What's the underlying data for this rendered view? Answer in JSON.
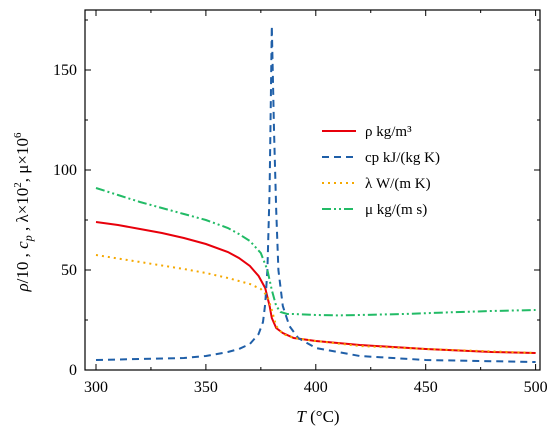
{
  "chart_data": {
    "type": "line",
    "xlabel": "T (°C)",
    "ylabel": "ρ/10 , cp , λ×10², μ×10⁶",
    "xlim": [
      295,
      502
    ],
    "ylim": [
      0,
      180
    ],
    "xticks": [
      300,
      350,
      400,
      450,
      500
    ],
    "yticks": [
      0,
      50,
      100,
      150
    ],
    "grid": false,
    "legend_position": "upper-right",
    "series": [
      {
        "name": "ρ  kg/m³",
        "color": "#e8000b",
        "dash": "solid",
        "x": [
          300,
          310,
          320,
          330,
          340,
          350,
          360,
          365,
          370,
          374,
          377,
          379,
          380,
          382,
          385,
          390,
          400,
          420,
          450,
          480,
          500
        ],
        "y": [
          74,
          72.5,
          70.5,
          68.5,
          66,
          63,
          59,
          56,
          52,
          47,
          41,
          32,
          26,
          21,
          18.5,
          16,
          14.5,
          12.5,
          10.5,
          9,
          8.5
        ]
      },
      {
        "name": "cp  kJ/(kg K)",
        "color": "#1f5fa8",
        "dash": "7,5",
        "x": [
          300,
          320,
          340,
          350,
          360,
          365,
          370,
          374,
          376,
          377,
          378,
          379,
          379.5,
          380,
          381,
          382,
          383,
          385,
          388,
          392,
          400,
          420,
          450,
          500
        ],
        "y": [
          5,
          5.5,
          6,
          7,
          9,
          10.5,
          13,
          18,
          24,
          33,
          50,
          90,
          130,
          172,
          120,
          80,
          50,
          32,
          22,
          16,
          11,
          7,
          5,
          4
        ]
      },
      {
        "name": "λ  W/(m K)",
        "color": "#f5a800",
        "dash": "2,4",
        "x": [
          300,
          320,
          340,
          350,
          360,
          370,
          375,
          378,
          380,
          382,
          385,
          390,
          400,
          420,
          450,
          500
        ],
        "y": [
          57.5,
          54,
          50.5,
          48.5,
          46,
          43,
          40.5,
          37,
          30,
          22,
          18,
          16,
          14.5,
          12,
          10.5,
          8.5
        ]
      },
      {
        "name": "μ  kg/(m s)",
        "color": "#22bb66",
        "dash": "9,3,2,3,2,3",
        "x": [
          300,
          310,
          320,
          330,
          340,
          350,
          360,
          365,
          370,
          375,
          378,
          380,
          382,
          384,
          387,
          390,
          400,
          410,
          420,
          440,
          460,
          480,
          500
        ],
        "y": [
          91,
          87.5,
          84,
          81,
          78,
          75,
          71,
          68,
          64.5,
          58.5,
          50,
          40,
          32,
          29,
          28,
          28,
          27.5,
          27.3,
          27.5,
          28,
          28.8,
          29.5,
          30
        ]
      }
    ]
  }
}
